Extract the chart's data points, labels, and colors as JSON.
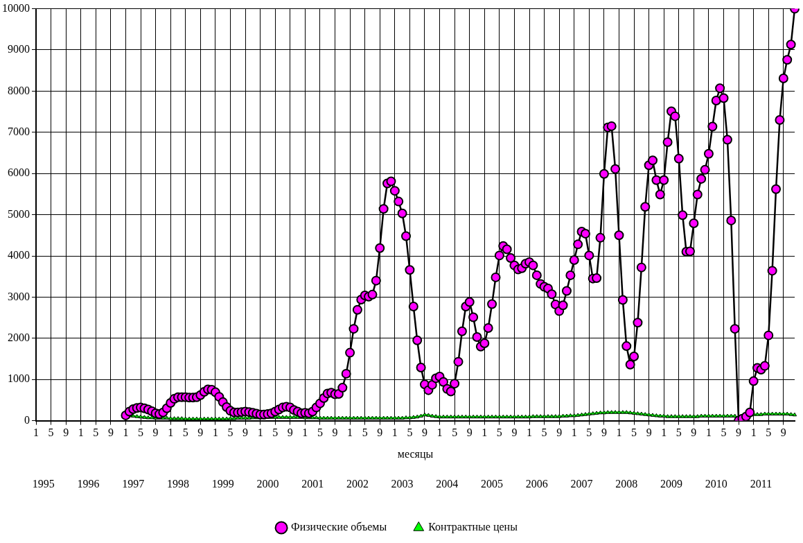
{
  "chart_data": {
    "type": "line",
    "xlabel": "месяцы",
    "categories": [
      "1",
      null,
      null,
      null,
      "5",
      null,
      null,
      null,
      "9",
      null,
      null,
      null,
      "1",
      null,
      null,
      null,
      "5",
      null,
      null,
      null,
      "9",
      null,
      null,
      null,
      "1",
      null,
      null,
      null,
      "5",
      null,
      null,
      null,
      "9",
      null,
      null,
      null,
      "1",
      null,
      null,
      null,
      "5",
      null,
      null,
      null,
      "9",
      null,
      null,
      null,
      "1",
      null,
      null,
      null,
      "5",
      null,
      null,
      null,
      "9",
      null,
      null,
      null,
      "1",
      null,
      null,
      null,
      "5",
      null,
      null,
      null,
      "9",
      null,
      null,
      null,
      "1",
      null,
      null,
      null,
      "5",
      null,
      null,
      null,
      "9",
      null,
      null,
      null,
      "1",
      null,
      null,
      null,
      "5",
      null,
      null,
      null,
      "9",
      null,
      null,
      null,
      "1",
      null,
      null,
      null,
      "5",
      null,
      null,
      null,
      "9",
      null,
      null,
      null,
      "1",
      null,
      null,
      null,
      "5",
      null,
      null,
      null,
      "9",
      null,
      null,
      null,
      "1",
      null,
      null,
      null,
      "5",
      null,
      null,
      null,
      "9",
      null,
      null,
      null,
      "1",
      null,
      null,
      null,
      "5",
      null,
      null,
      null,
      "9",
      null,
      null,
      null,
      "1",
      null,
      null,
      null,
      "5",
      null,
      null,
      null,
      "9",
      null,
      null,
      null,
      "1",
      null,
      null,
      null,
      "5",
      null,
      null,
      null,
      "9",
      null,
      null,
      null,
      "1",
      null,
      null,
      null,
      "5",
      null,
      null,
      null,
      "9",
      null,
      null,
      null,
      "1",
      null,
      null,
      null,
      "5",
      null,
      null,
      null,
      "9",
      null,
      null,
      null,
      "1",
      null,
      null,
      null,
      "5",
      null,
      null,
      null,
      "9",
      null,
      null,
      null
    ],
    "series": [
      {
        "name": "Физические объемы",
        "color": "#ff00ff",
        "marker": "circle",
        "values": [
          null,
          null,
          null,
          null,
          null,
          null,
          null,
          null,
          null,
          null,
          null,
          null,
          null,
          null,
          null,
          null,
          null,
          null,
          null,
          null,
          null,
          null,
          null,
          null,
          130,
          220,
          280,
          310,
          320,
          300,
          270,
          230,
          180,
          160,
          200,
          300,
          430,
          530,
          570,
          570,
          570,
          560,
          560,
          570,
          620,
          700,
          760,
          750,
          690,
          580,
          450,
          330,
          240,
          200,
          200,
          210,
          220,
          210,
          190,
          170,
          150,
          150,
          160,
          180,
          220,
          270,
          320,
          340,
          320,
          260,
          220,
          180,
          190,
          180,
          220,
          320,
          420,
          550,
          660,
          680,
          640,
          650,
          800,
          1140,
          1650,
          2230,
          2690,
          2940,
          3040,
          3010,
          3060,
          3400,
          4190,
          5140,
          5760,
          5810,
          5580,
          5320,
          5030,
          4480,
          3660,
          2770,
          1950,
          1290,
          880,
          740,
          870,
          1030,
          1070,
          940,
          770,
          710,
          900,
          1430,
          2170,
          2770,
          2880,
          2510,
          2030,
          1800,
          1880,
          2250,
          2830,
          3480,
          4010,
          4240,
          4160,
          3950,
          3770,
          3670,
          3700,
          3810,
          3850,
          3770,
          3530,
          3320,
          3250,
          3210,
          3070,
          2820,
          2660,
          2800,
          3150,
          3530,
          3900,
          4280,
          4590,
          4540,
          4010,
          3450,
          3460,
          4440,
          5990,
          7120,
          7150,
          6110,
          4500,
          2930,
          1810,
          1360,
          1560,
          2380,
          3720,
          5190,
          6200,
          6320,
          5840,
          5490,
          5840,
          6760,
          7510,
          7390,
          6360,
          4990,
          4100,
          4110,
          4790,
          5490,
          5870,
          6090,
          6480,
          7140,
          7770,
          8070,
          7830,
          6820,
          4860,
          2230,
          0,
          50,
          100,
          200,
          960,
          1280,
          1240,
          1330,
          2070,
          3640,
          5620,
          7300,
          8310,
          8760,
          9130,
          10000
        ]
      },
      {
        "name": "Контрактные цены",
        "color": "#00ff00",
        "marker": "triangle",
        "values": [
          null,
          null,
          null,
          null,
          null,
          null,
          null,
          null,
          null,
          null,
          null,
          null,
          null,
          null,
          null,
          null,
          null,
          null,
          null,
          null,
          null,
          null,
          null,
          null,
          130,
          120,
          110,
          100,
          90,
          80,
          70,
          70,
          60,
          60,
          60,
          60,
          50,
          50,
          50,
          50,
          40,
          40,
          40,
          40,
          40,
          40,
          40,
          40,
          40,
          40,
          40,
          40,
          50,
          50,
          60,
          60,
          60,
          60,
          70,
          70,
          70,
          70,
          80,
          80,
          80,
          80,
          80,
          80,
          80,
          80,
          80,
          80,
          70,
          70,
          70,
          70,
          60,
          60,
          60,
          60,
          60,
          60,
          60,
          60,
          60,
          60,
          60,
          60,
          60,
          60,
          60,
          60,
          60,
          60,
          60,
          60,
          60,
          60,
          60,
          70,
          70,
          80,
          90,
          110,
          140,
          130,
          110,
          100,
          90,
          90,
          90,
          90,
          90,
          90,
          90,
          90,
          90,
          90,
          90,
          90,
          90,
          90,
          90,
          90,
          90,
          90,
          90,
          90,
          90,
          90,
          90,
          90,
          90,
          100,
          100,
          100,
          100,
          100,
          100,
          100,
          100,
          110,
          110,
          120,
          120,
          130,
          140,
          150,
          160,
          170,
          180,
          190,
          190,
          200,
          200,
          200,
          200,
          200,
          200,
          190,
          180,
          170,
          160,
          150,
          140,
          130,
          120,
          110,
          110,
          100,
          100,
          100,
          100,
          100,
          100,
          100,
          100,
          100,
          110,
          110,
          110,
          110,
          110,
          110,
          110,
          110,
          110,
          110,
          0,
          100,
          120,
          140,
          150,
          150,
          150,
          160,
          160,
          160,
          160,
          160,
          160,
          160,
          150,
          140
        ]
      }
    ],
    "ylim": [
      0,
      10000
    ],
    "yticks": [
      0,
      1000,
      2000,
      3000,
      4000,
      5000,
      6000,
      7000,
      8000,
      9000,
      10000
    ],
    "grid": true,
    "legend": "bottom",
    "line_style": "solid",
    "annotations": [
      "1995",
      "1996",
      "1997",
      "1998",
      "1999",
      "2000",
      "2001",
      "2002",
      "2003",
      "2004",
      "2005",
      "2006",
      "2007",
      "2008",
      "2009",
      "2010",
      "2011"
    ]
  }
}
